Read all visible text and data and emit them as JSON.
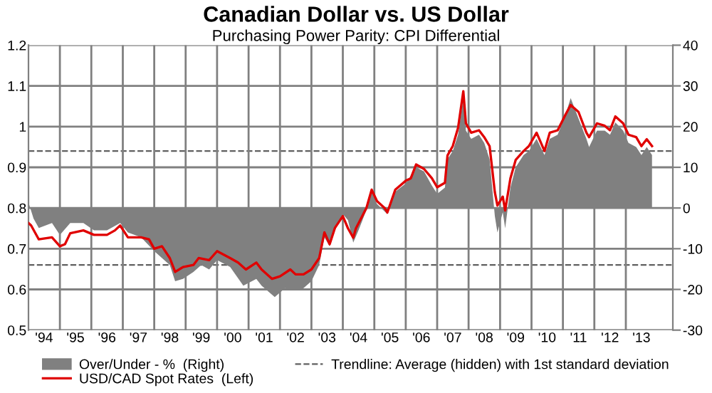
{
  "chart_data": {
    "type": "line",
    "title": "Canadian Dollar vs. US Dollar",
    "subtitle": "Purchasing Power Parity: CPI Differential",
    "series": [
      {
        "name": "Over/Under - %  (Right)",
        "type": "area",
        "axis": "y2",
        "color": "#808080",
        "x": [
          "1994-01",
          "1994-03",
          "1994-05",
          "1994-10",
          "1995-01",
          "1995-05",
          "1995-10",
          "1996-02",
          "1996-07",
          "1996-12",
          "1997-03",
          "1997-08",
          "1998-01",
          "1998-07",
          "1998-09",
          "1998-12",
          "1999-04",
          "1999-07",
          "1999-10",
          "2000-01",
          "2000-06",
          "2000-11",
          "2001-04",
          "2001-06",
          "2001-11",
          "2002-03",
          "2002-07",
          "2002-10",
          "2003-01",
          "2003-04",
          "2003-06",
          "2003-08",
          "2003-10",
          "2004-01",
          "2004-03",
          "2004-05",
          "2004-07",
          "2004-10",
          "2004-12",
          "2005-02",
          "2005-06",
          "2005-09",
          "2006-01",
          "2006-05",
          "2006-08",
          "2006-11",
          "2007-01",
          "2007-04",
          "2007-05",
          "2007-07",
          "2007-09",
          "2007-11",
          "2007-12",
          "2008-02",
          "2008-05",
          "2008-07",
          "2008-09",
          "2008-11",
          "2008-12",
          "2009-02",
          "2009-03",
          "2009-05",
          "2009-07",
          "2009-10",
          "2009-12",
          "2010-03",
          "2010-06",
          "2010-08",
          "2010-11",
          "2011-02",
          "2011-04",
          "2011-07",
          "2011-10",
          "2011-11",
          "2012-02",
          "2012-05",
          "2012-07",
          "2012-09",
          "2012-12",
          "2013-02",
          "2013-05",
          "2013-07",
          "2013-09",
          "2013-11"
        ],
        "values": [
          1.4,
          -2.6,
          -4.9,
          -3.7,
          -6.6,
          -3.7,
          -3.7,
          -5.5,
          -5.5,
          -3.7,
          -6,
          -7.2,
          -10.6,
          -14,
          -18,
          -17.4,
          -15.7,
          -14,
          -15.1,
          -12.8,
          -14.5,
          -19.1,
          -17.4,
          -19.1,
          -21.9,
          -19.7,
          -20.2,
          -19.7,
          -18,
          -14,
          -7.2,
          -9.4,
          -5.5,
          -1.5,
          -3,
          -8.5,
          -5.5,
          -0.5,
          4,
          1,
          -1.5,
          4,
          6,
          10,
          9,
          5.5,
          3.5,
          5,
          12,
          14,
          18,
          27,
          19,
          17,
          18,
          16,
          12,
          -2,
          -6,
          -1,
          -5,
          5,
          10,
          13,
          14,
          17,
          13,
          17,
          18,
          23,
          27,
          22,
          17,
          15,
          19,
          19,
          18,
          21,
          19,
          16,
          15,
          13,
          15,
          13
        ]
      },
      {
        "name": "USD/CAD Spot Rates  (Left)",
        "color": "#e00000",
        "x": [
          "1994-01",
          "1994-02",
          "1994-05",
          "1994-10",
          "1995-01",
          "1995-03",
          "1995-05",
          "1995-10",
          "1996-02",
          "1996-07",
          "1996-10",
          "1996-12",
          "1997-03",
          "1997-08",
          "1997-11",
          "1998-01",
          "1998-04",
          "1998-07",
          "1998-09",
          "1998-12",
          "1999-04",
          "1999-06",
          "1999-10",
          "2000-01",
          "2000-06",
          "2000-09",
          "2000-12",
          "2001-04",
          "2001-06",
          "2001-10",
          "2002-01",
          "2002-05",
          "2002-07",
          "2002-10",
          "2003-01",
          "2003-04",
          "2003-06",
          "2003-08",
          "2003-10",
          "2004-01",
          "2004-03",
          "2004-05",
          "2004-06",
          "2004-10",
          "2004-12",
          "2005-02",
          "2005-05",
          "2005-06",
          "2005-09",
          "2006-01",
          "2006-03",
          "2006-05",
          "2006-08",
          "2006-11",
          "2007-01",
          "2007-04",
          "2007-05",
          "2007-07",
          "2007-09",
          "2007-11",
          "2007-12",
          "2008-02",
          "2008-05",
          "2008-07",
          "2008-09",
          "2008-11",
          "2008-12",
          "2009-02",
          "2009-03",
          "2009-05",
          "2009-07",
          "2009-10",
          "2009-12",
          "2010-03",
          "2010-06",
          "2010-08",
          "2010-11",
          "2011-02",
          "2011-04",
          "2011-07",
          "2011-10",
          "2011-11",
          "2012-02",
          "2012-05",
          "2012-07",
          "2012-09",
          "2012-12",
          "2013-02",
          "2013-05",
          "2013-07",
          "2013-09",
          "2013-11"
        ],
        "values": [
          0.763,
          0.757,
          0.723,
          0.728,
          0.706,
          0.711,
          0.738,
          0.745,
          0.734,
          0.734,
          0.745,
          0.757,
          0.728,
          0.728,
          0.723,
          0.7,
          0.706,
          0.677,
          0.643,
          0.655,
          0.66,
          0.677,
          0.672,
          0.694,
          0.677,
          0.666,
          0.649,
          0.666,
          0.649,
          0.626,
          0.632,
          0.649,
          0.637,
          0.637,
          0.649,
          0.677,
          0.74,
          0.711,
          0.751,
          0.78,
          0.75,
          0.727,
          0.75,
          0.8,
          0.845,
          0.817,
          0.8,
          0.789,
          0.845,
          0.867,
          0.873,
          0.907,
          0.896,
          0.873,
          0.851,
          0.862,
          0.929,
          0.952,
          0.997,
          1.087,
          1.008,
          0.985,
          0.991,
          0.974,
          0.952,
          0.839,
          0.806,
          0.828,
          0.794,
          0.873,
          0.918,
          0.94,
          0.952,
          0.985,
          0.94,
          0.985,
          0.991,
          1.03,
          1.053,
          1.036,
          0.985,
          0.974,
          1.008,
          1.002,
          0.991,
          1.025,
          1.008,
          0.98,
          0.974,
          0.952,
          0.969,
          0.952
        ]
      }
    ],
    "ref_lines": [
      {
        "axis": "y2",
        "value": 14,
        "label": "Trendline: Average (hidden) with 1st standard deviation",
        "color": "#606060",
        "line_style": "dashed"
      },
      {
        "axis": "y2",
        "value": -14,
        "label": null,
        "color": "#606060",
        "line_style": "dashed"
      }
    ],
    "xlim": [
      "1994-01",
      "2014-07"
    ],
    "xticks": [
      {
        "value": "1994-07",
        "label": "'94"
      },
      {
        "value": "1995-01",
        "label": null
      },
      {
        "value": "1995-07",
        "label": "'95"
      },
      {
        "value": "1996-01",
        "label": null
      },
      {
        "value": "1996-07",
        "label": "'96"
      },
      {
        "value": "1997-01",
        "label": null
      },
      {
        "value": "1997-07",
        "label": "'97"
      },
      {
        "value": "1998-01",
        "label": null
      },
      {
        "value": "1998-07",
        "label": "'98"
      },
      {
        "value": "1999-01",
        "label": null
      },
      {
        "value": "1999-07",
        "label": "'99"
      },
      {
        "value": "2000-01",
        "label": null
      },
      {
        "value": "2000-07",
        "label": "'00"
      },
      {
        "value": "2001-01",
        "label": null
      },
      {
        "value": "2001-07",
        "label": "'01"
      },
      {
        "value": "2002-01",
        "label": null
      },
      {
        "value": "2002-07",
        "label": "'02"
      },
      {
        "value": "2003-01",
        "label": null
      },
      {
        "value": "2003-07",
        "label": "'03"
      },
      {
        "value": "2004-01",
        "label": null
      },
      {
        "value": "2004-07",
        "label": "'04"
      },
      {
        "value": "2005-01",
        "label": null
      },
      {
        "value": "2005-07",
        "label": "'05"
      },
      {
        "value": "2006-01",
        "label": null
      },
      {
        "value": "2006-07",
        "label": "'06"
      },
      {
        "value": "2007-01",
        "label": null
      },
      {
        "value": "2007-07",
        "label": "'07"
      },
      {
        "value": "2008-01",
        "label": null
      },
      {
        "value": "2008-07",
        "label": "'08"
      },
      {
        "value": "2009-01",
        "label": null
      },
      {
        "value": "2009-07",
        "label": "'09"
      },
      {
        "value": "2010-01",
        "label": null
      },
      {
        "value": "2010-07",
        "label": "'10"
      },
      {
        "value": "2011-01",
        "label": null
      },
      {
        "value": "2011-07",
        "label": "'11"
      },
      {
        "value": "2012-01",
        "label": null
      },
      {
        "value": "2012-07",
        "label": "'12"
      },
      {
        "value": "2013-01",
        "label": null
      },
      {
        "value": "2013-07",
        "label": "'13"
      }
    ],
    "ylim": [
      0.5,
      1.2
    ],
    "yticks": [
      0.5,
      0.6,
      0.7,
      0.8,
      0.9,
      1,
      1.1,
      1.2
    ],
    "y2lim": [
      -30,
      40
    ],
    "y2ticks": [
      -30,
      -20,
      -10,
      0,
      10,
      20,
      30,
      40
    ],
    "grid": true,
    "legend": "bottom"
  }
}
